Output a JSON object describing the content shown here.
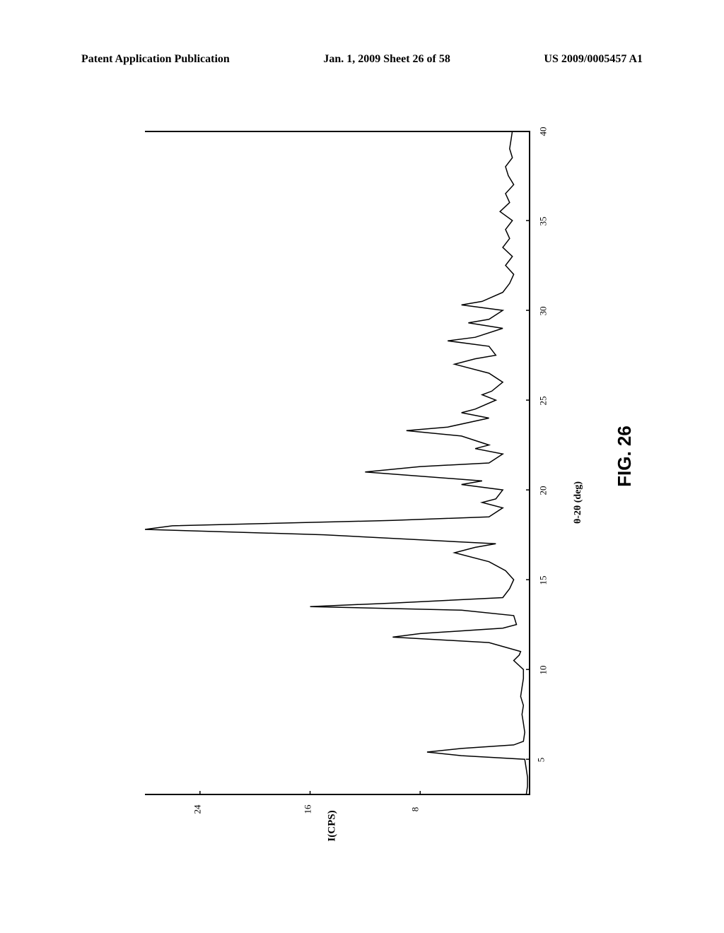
{
  "header": {
    "left": "Patent Application Publication",
    "center": "Jan. 1, 2009  Sheet 26 of 58",
    "right": "US 2009/0005457 A1"
  },
  "figure_label": "FIG. 26",
  "chart": {
    "type": "line",
    "orientation": "rotated-90",
    "x_axis": {
      "label": "θ-2θ (deg)",
      "min": 3,
      "max": 40,
      "ticks": [
        5,
        10,
        15,
        20,
        25,
        30,
        35,
        40
      ]
    },
    "y_axis": {
      "label": "I(CPS)",
      "min": 0,
      "max": 28,
      "ticks": [
        8,
        16,
        24
      ]
    },
    "background_color": "#ffffff",
    "line_color": "#000000",
    "line_width": 1.5,
    "tick_fontsize": 13,
    "label_fontsize": 14,
    "data_points": [
      [
        3,
        0.3
      ],
      [
        3.5,
        0.2
      ],
      [
        4,
        0.2
      ],
      [
        4.5,
        0.3
      ],
      [
        5,
        0.4
      ],
      [
        5.2,
        5
      ],
      [
        5.4,
        7.5
      ],
      [
        5.6,
        5
      ],
      [
        5.8,
        1.2
      ],
      [
        6,
        0.5
      ],
      [
        6.5,
        0.4
      ],
      [
        7,
        0.5
      ],
      [
        7.5,
        0.6
      ],
      [
        8,
        0.5
      ],
      [
        8.5,
        0.7
      ],
      [
        9,
        0.6
      ],
      [
        9.5,
        0.5
      ],
      [
        10,
        0.5
      ],
      [
        10.5,
        1.2
      ],
      [
        10.8,
        0.8
      ],
      [
        11,
        0.7
      ],
      [
        11.5,
        3
      ],
      [
        11.8,
        10
      ],
      [
        12,
        8
      ],
      [
        12.3,
        2
      ],
      [
        12.5,
        1
      ],
      [
        13,
        1.2
      ],
      [
        13.3,
        5
      ],
      [
        13.5,
        16
      ],
      [
        13.7,
        10
      ],
      [
        14,
        2
      ],
      [
        14.5,
        1.5
      ],
      [
        15,
        1.2
      ],
      [
        15.5,
        1.8
      ],
      [
        16,
        3
      ],
      [
        16.5,
        5.5
      ],
      [
        16.8,
        4
      ],
      [
        17,
        2.5
      ],
      [
        17.5,
        15
      ],
      [
        17.8,
        28
      ],
      [
        18,
        26
      ],
      [
        18.3,
        10
      ],
      [
        18.5,
        3
      ],
      [
        19,
        2
      ],
      [
        19.3,
        3.5
      ],
      [
        19.5,
        2.5
      ],
      [
        20,
        2
      ],
      [
        20.3,
        5
      ],
      [
        20.5,
        3.5
      ],
      [
        21,
        12
      ],
      [
        21.3,
        8
      ],
      [
        21.5,
        3
      ],
      [
        22,
        2
      ],
      [
        22.3,
        4
      ],
      [
        22.5,
        3
      ],
      [
        23,
        5
      ],
      [
        23.3,
        9
      ],
      [
        23.5,
        6
      ],
      [
        24,
        3
      ],
      [
        24.3,
        5
      ],
      [
        24.5,
        4
      ],
      [
        25,
        2.5
      ],
      [
        25.3,
        3.5
      ],
      [
        25.5,
        2.8
      ],
      [
        26,
        2
      ],
      [
        26.5,
        3
      ],
      [
        27,
        5.5
      ],
      [
        27.3,
        4
      ],
      [
        27.5,
        2.5
      ],
      [
        28,
        3
      ],
      [
        28.3,
        6
      ],
      [
        28.5,
        4
      ],
      [
        29,
        2
      ],
      [
        29.3,
        4.5
      ],
      [
        29.5,
        3
      ],
      [
        30,
        2
      ],
      [
        30.3,
        5
      ],
      [
        30.5,
        3.5
      ],
      [
        31,
        2
      ],
      [
        31.5,
        1.5
      ],
      [
        32,
        1.2
      ],
      [
        32.5,
        1.8
      ],
      [
        33,
        1.3
      ],
      [
        33.5,
        2
      ],
      [
        34,
        1.5
      ],
      [
        34.5,
        1.8
      ],
      [
        35,
        1.3
      ],
      [
        35.5,
        2.2
      ],
      [
        36,
        1.5
      ],
      [
        36.5,
        1.8
      ],
      [
        37,
        1.2
      ],
      [
        37.5,
        1.6
      ],
      [
        38,
        1.8
      ],
      [
        38.5,
        1.3
      ],
      [
        39,
        1.5
      ],
      [
        39.5,
        1.4
      ],
      [
        40,
        1.3
      ]
    ]
  }
}
